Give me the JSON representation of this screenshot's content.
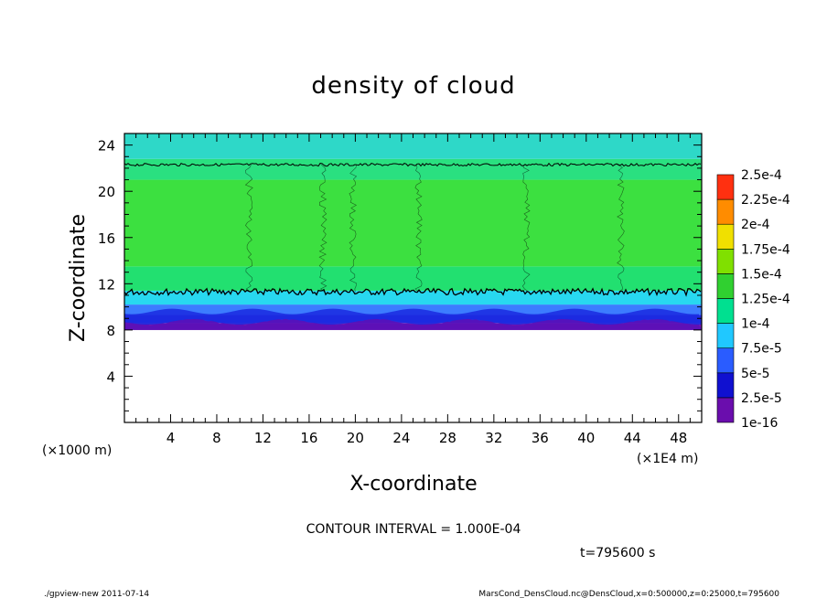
{
  "chart_data": {
    "type": "heatmap",
    "title": "density of cloud",
    "xlabel": "X-coordinate",
    "ylabel": "Z-coordinate",
    "x_unit_left": "(×1000 m)",
    "x_unit_right": "(×1E4 m)",
    "xlim": [
      0,
      50
    ],
    "ylim": [
      0,
      25
    ],
    "x_ticks": [
      4,
      8,
      12,
      16,
      20,
      24,
      28,
      32,
      36,
      40,
      44,
      48
    ],
    "y_ticks": [
      4,
      8,
      12,
      16,
      20,
      24
    ],
    "contour_interval_text": "CONTOUR INTERVAL = 1.000E-04",
    "time_text": "t=795600 s",
    "colorbar": {
      "labels": [
        "1e-16",
        "2.5e-5",
        "5e-5",
        "7.5e-5",
        "1e-4",
        "1.25e-4",
        "1.5e-4",
        "1.75e-4",
        "2e-4",
        "2.25e-4",
        "2.5e-4"
      ],
      "colors": [
        "#6a0dad",
        "#1010d0",
        "#2a5cff",
        "#20c8ff",
        "#00e090",
        "#30d030",
        "#80e000",
        "#f0e000",
        "#ff8c00",
        "#ff3010",
        "#ff9090"
      ]
    },
    "layers": [
      {
        "z": [
          8.0,
          8.6
        ],
        "level": "1e-16",
        "color": "#7a1ab0"
      },
      {
        "z": [
          8.6,
          9.3
        ],
        "level": "2.5e-5",
        "color": "#2a2ae0"
      },
      {
        "z": [
          9.3,
          10.2
        ],
        "level": "5e-5",
        "color": "#3c7cff"
      },
      {
        "z": [
          10.2,
          11.4
        ],
        "level": "7.5e-5",
        "color": "#28d8f0"
      },
      {
        "z": [
          11.4,
          13.5
        ],
        "level": "1e-4",
        "color": "#22e070"
      },
      {
        "z": [
          13.5,
          21.0
        ],
        "level": "1.25e-4",
        "color": "#3ce040"
      },
      {
        "z": [
          21.0,
          22.8
        ],
        "level": "1e-4",
        "color": "#2ae080"
      },
      {
        "z": [
          22.8,
          25.0
        ],
        "level": "7.5e-5",
        "color": "#2ed8c8"
      }
    ],
    "contour_lines_z": [
      11.3,
      22.3
    ],
    "grid": false
  },
  "footer": {
    "left": "./gpview-new   2011-07-14",
    "right": "MarsCond_DensCloud.nc@DensCloud,x=0:500000,z=0:25000,t=795600"
  }
}
